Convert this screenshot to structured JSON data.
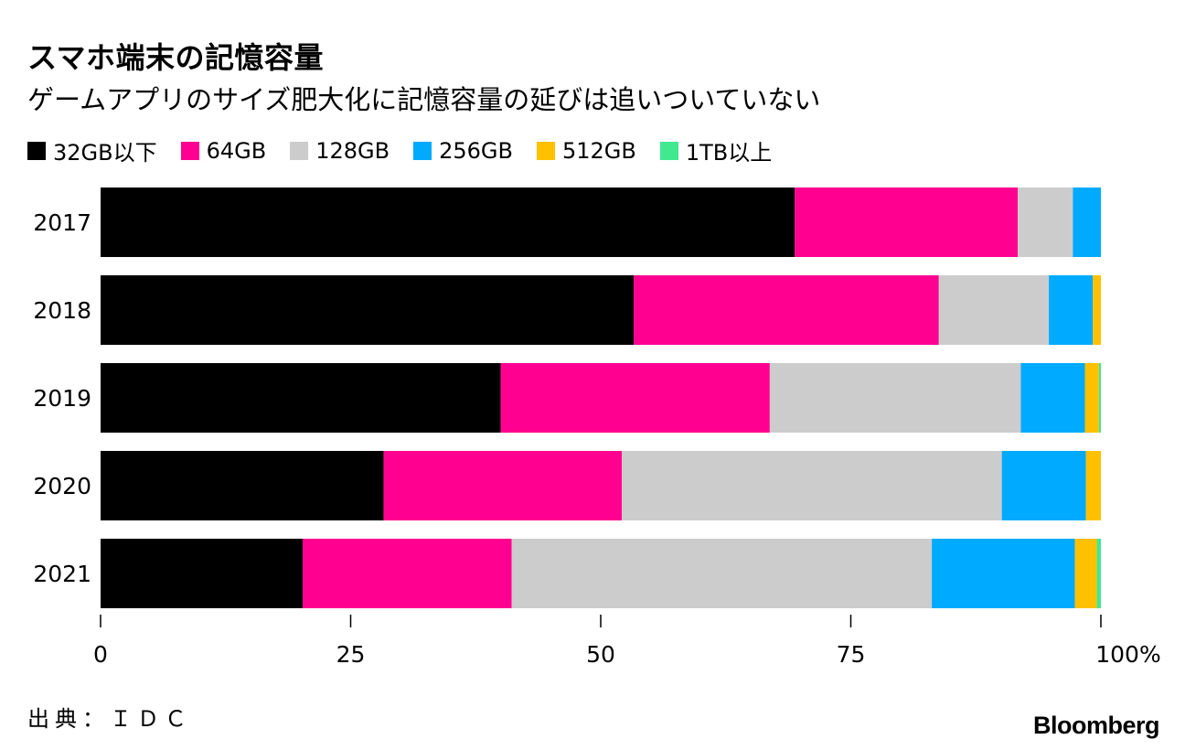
{
  "header": {
    "title": "スマホ端末の記憶容量",
    "subtitle": "ゲームアプリのサイズ肥大化に記憶容量の延びは追いついていない"
  },
  "footer": {
    "source": "出典：ＩＤＣ",
    "brand": "Bloomberg"
  },
  "chart_data": {
    "type": "bar",
    "orientation": "horizontal",
    "stacked": true,
    "categories": [
      "2017",
      "2018",
      "2019",
      "2020",
      "2021"
    ],
    "series": [
      {
        "name": "32GB以下",
        "color": "#000000",
        "values": [
          69.4,
          53.3,
          40.0,
          28.3,
          20.2
        ]
      },
      {
        "name": "64GB",
        "color": "#ff0090",
        "values": [
          22.3,
          30.5,
          26.9,
          23.8,
          20.9
        ]
      },
      {
        "name": "128GB",
        "color": "#cccccc",
        "values": [
          5.5,
          11.0,
          25.1,
          38.0,
          42.0
        ]
      },
      {
        "name": "256GB",
        "color": "#00aaff",
        "values": [
          2.8,
          4.4,
          6.4,
          8.4,
          14.3
        ]
      },
      {
        "name": "512GB",
        "color": "#ffc000",
        "values": [
          0.0,
          0.8,
          1.4,
          1.5,
          2.2
        ]
      },
      {
        "name": "1TB以上",
        "color": "#40e890",
        "values": [
          0.0,
          0.0,
          0.2,
          0.0,
          0.4
        ]
      }
    ],
    "xlim": [
      0,
      100
    ],
    "xticks": [
      0,
      25,
      50,
      75,
      100
    ],
    "xtick_labels": [
      "0",
      "25",
      "50",
      "75",
      "100%"
    ],
    "legend_position": "top-left"
  }
}
